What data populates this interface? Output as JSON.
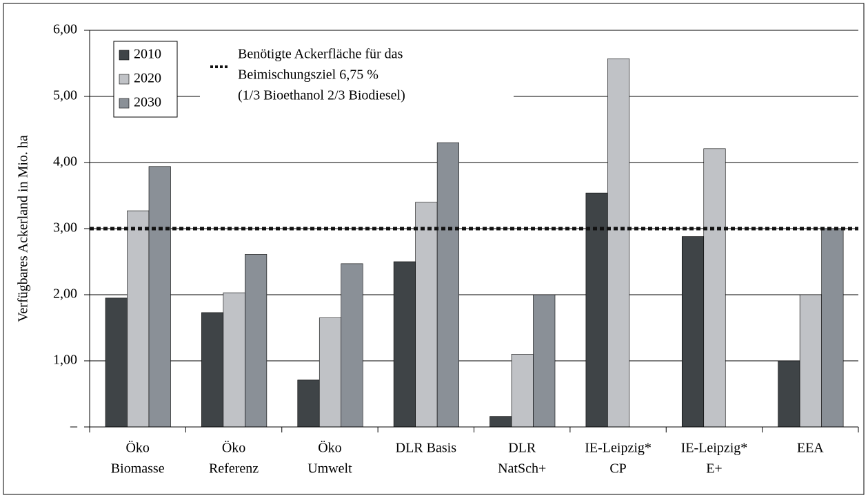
{
  "chart_data": {
    "type": "bar",
    "y_label": "Verfügbares Ackerland in Mio. ha",
    "categories": [
      [
        "Öko",
        "Biomasse"
      ],
      [
        "Öko",
        "Referenz"
      ],
      [
        "Öko",
        "Umwelt"
      ],
      [
        "DLR Basis"
      ],
      [
        "DLR",
        "NatSch+"
      ],
      [
        "IE-Leipzig*",
        "CP"
      ],
      [
        "IE-Leipzig*",
        "E+"
      ],
      [
        "EEA"
      ]
    ],
    "series": [
      {
        "name": "2010",
        "color": "#3f4447",
        "values": [
          1.95,
          1.73,
          0.71,
          2.5,
          0.16,
          3.54,
          2.88,
          1.0
        ]
      },
      {
        "name": "2020",
        "color": "#c0c2c6",
        "values": [
          3.27,
          2.03,
          1.65,
          3.4,
          1.1,
          5.57,
          4.21,
          2.0
        ]
      },
      {
        "name": "2030",
        "color": "#8a9097",
        "values": [
          3.94,
          2.61,
          2.47,
          4.3,
          2.0,
          null,
          null,
          3.0
        ]
      }
    ],
    "reference_line": {
      "value": 3.0,
      "label": [
        "Benötigte Ackerfläche für das",
        "Beimischungsziel 6,75 %",
        "(1/3 Bioethanol 2/3 Biodiesel)"
      ]
    },
    "ylim": [
      0,
      6
    ],
    "yticks": [
      {
        "value": 0,
        "label": "–"
      },
      {
        "value": 1,
        "label": "1,00"
      },
      {
        "value": 2,
        "label": "2,00"
      },
      {
        "value": 3,
        "label": "3,00"
      },
      {
        "value": 4,
        "label": "4,00"
      },
      {
        "value": 5,
        "label": "5,00"
      },
      {
        "value": 6,
        "label": "6,00"
      }
    ],
    "grid": true
  }
}
